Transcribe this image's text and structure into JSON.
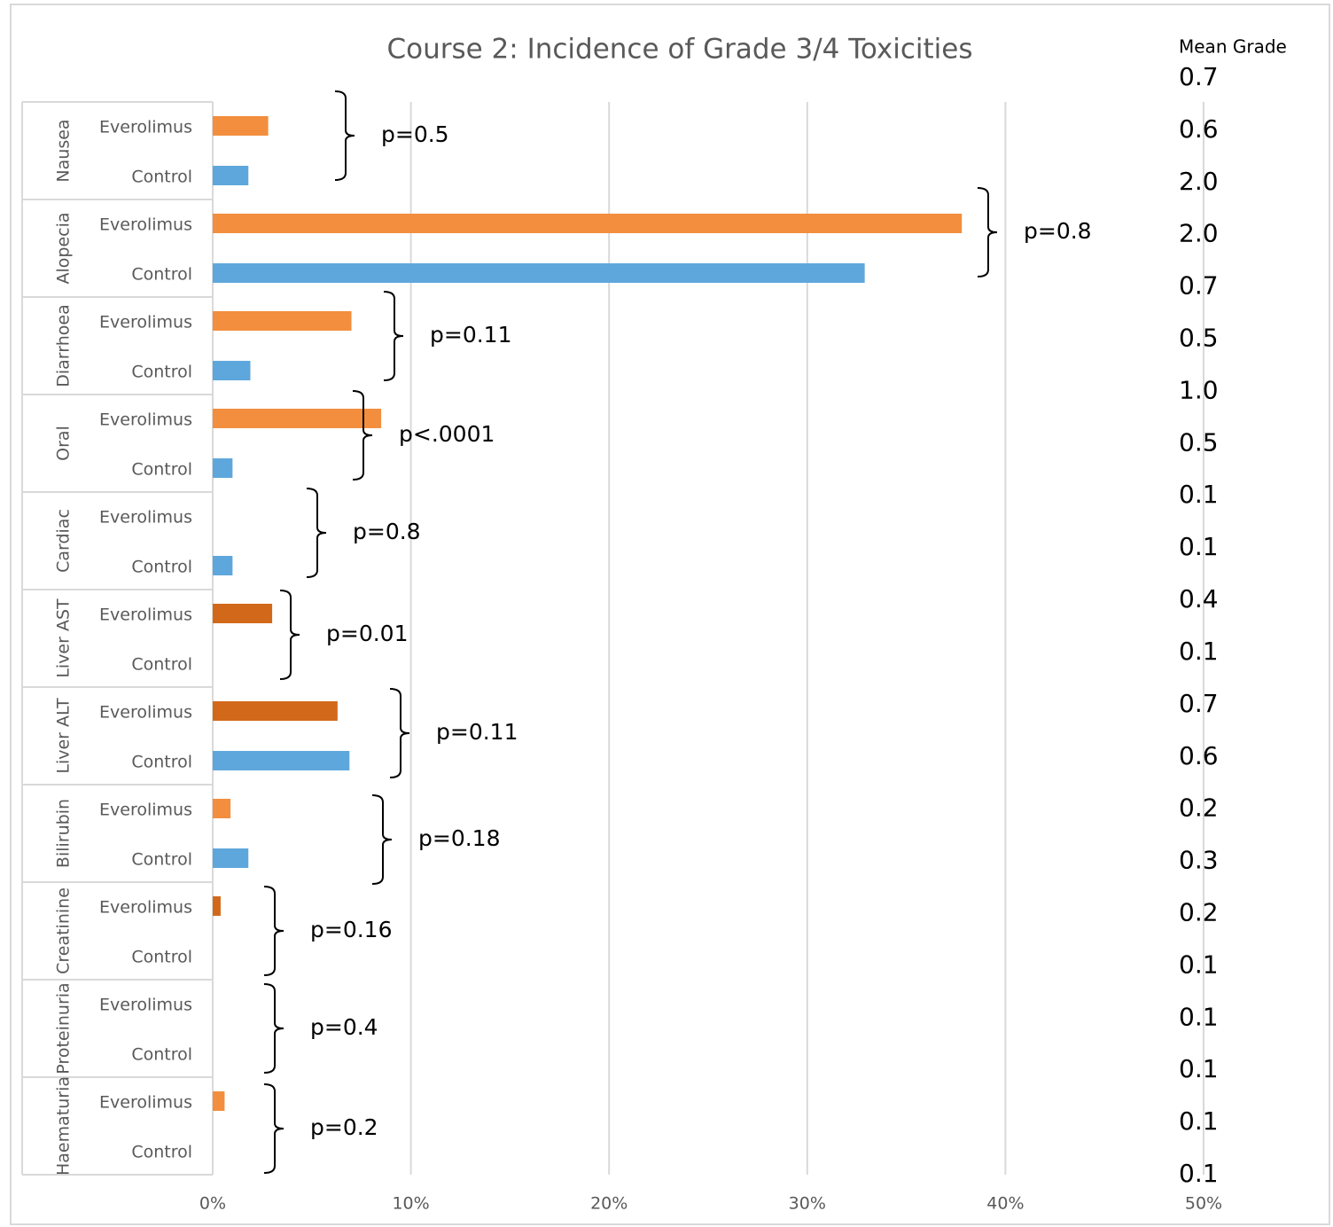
{
  "chart_data": {
    "type": "bar",
    "orientation": "horizontal",
    "title": "Course 2: Incidence of Grade 3/4 Toxicities",
    "categories": [
      "Nausea",
      "Alopecia",
      "Diarrhoea",
      "Oral",
      "Cardiac",
      "Liver AST",
      "Liver ALT",
      "Bilirubin",
      "Creatinine",
      "Proteinuria",
      "Haematuria"
    ],
    "series": [
      {
        "name": "Everolimus",
        "color": "#f28e3e",
        "colors": [
          "#f28e3e",
          "#f28e3e",
          "#f28e3e",
          "#f28e3e",
          "#f28e3e",
          "#d2691a",
          "#d2691a",
          "#f28e3e",
          "#d2691a",
          "#f28e3e",
          "#f28e3e"
        ],
        "values": [
          2.8,
          37.8,
          7.0,
          8.5,
          0,
          3.0,
          6.3,
          0.9,
          0.4,
          0,
          0.6
        ]
      },
      {
        "name": "Control",
        "color": "#5ea7dc",
        "values": [
          1.8,
          32.9,
          1.9,
          1.0,
          1.0,
          0,
          6.9,
          1.8,
          0,
          0,
          0
        ]
      }
    ],
    "p_values": [
      "p=0.5",
      "p=0.8",
      "p=0.11",
      "p<.0001",
      "p=0.8",
      "p=0.01",
      "p=0.11",
      "p=0.18",
      "p=0.16",
      "p=0.4",
      "p=0.2"
    ],
    "mean_grade": {
      "title": "Mean Grade",
      "labels": [
        "0.7",
        "0.6",
        "2.0",
        "2.0",
        "0.7",
        "0.5",
        "1.0",
        "0.5",
        "0.1",
        "0.1",
        "0.4",
        "0.1",
        "0.7",
        "0.6",
        "0.2",
        "0.3",
        "0.2",
        "0.1",
        "0.1",
        "0.1",
        "0.1",
        "0.1"
      ]
    },
    "xlim": [
      0,
      50
    ],
    "xticks": [
      {
        "value": 0,
        "label": "0%"
      },
      {
        "value": 10,
        "label": "10%"
      },
      {
        "value": 20,
        "label": "20%"
      },
      {
        "value": 30,
        "label": "30%"
      },
      {
        "value": 40,
        "label": "40%"
      },
      {
        "value": 50,
        "label": "50%"
      }
    ],
    "grid": true
  }
}
